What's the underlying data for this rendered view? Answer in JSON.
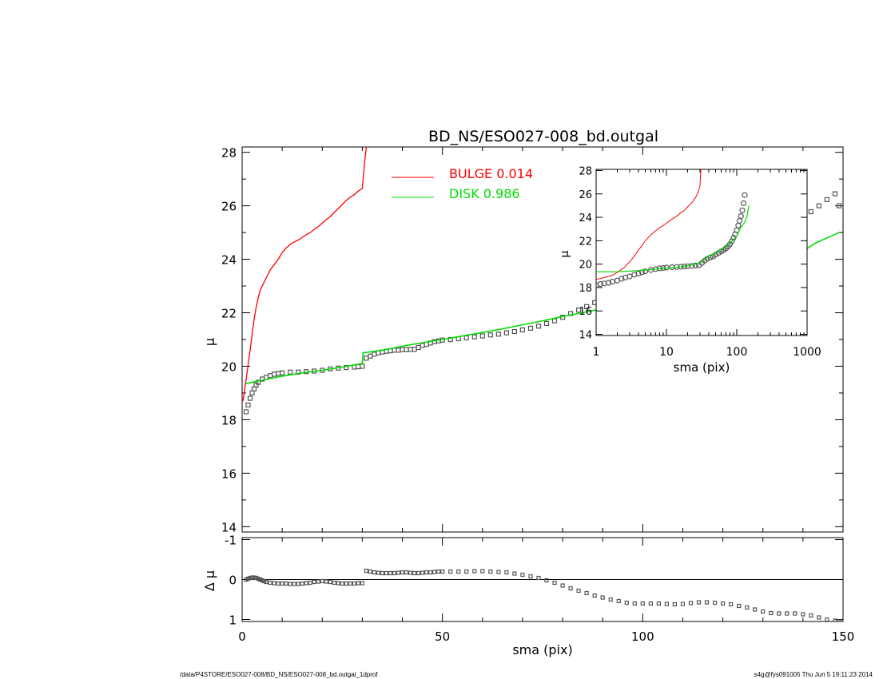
{
  "title": "BD_NS/ESO027-008_bd.outgal",
  "footer": {
    "left": "/data/P4STORE/ESO027-008/BD_NS/ESO027-008_bd.outgal_1dprof",
    "right": "s4g@fys091005  Thu Jun  5 19:11:23 2014"
  },
  "colors": {
    "bulge": "#ff0000",
    "disk": "#00dd00",
    "data": "#555555",
    "axis": "#000000"
  },
  "chart_data": [
    {
      "id": "main",
      "type": "line",
      "title": "BD_NS/ESO027-008_bd.outgal",
      "xlabel": "sma (pix)",
      "ylabel": "μ",
      "xlim": [
        0,
        150
      ],
      "ylim": [
        28.2,
        13.8
      ],
      "x_ticks": [
        0,
        50,
        100,
        150
      ],
      "y_ticks": [
        14,
        16,
        18,
        20,
        22,
        24,
        26,
        28
      ],
      "legend": [
        {
          "label": "BULGE  0.014",
          "series": "bulge"
        },
        {
          "label": "DISK  0.986",
          "series": "disk"
        }
      ],
      "series": [
        {
          "name": "data",
          "style": "markers",
          "x": [
            1,
            1.5,
            2,
            2.5,
            3,
            3.5,
            4,
            5,
            6,
            7,
            8,
            9,
            10,
            12,
            14,
            16,
            18,
            20,
            22,
            24,
            26,
            28,
            29,
            30,
            31,
            32,
            33,
            34,
            35,
            36,
            37,
            38,
            39,
            40,
            41,
            42,
            43,
            44,
            45,
            46,
            47,
            48,
            49,
            50,
            52,
            54,
            56,
            58,
            60,
            62,
            64,
            66,
            68,
            70,
            72,
            74,
            76,
            78,
            80,
            82,
            84,
            86,
            88,
            90,
            92,
            94,
            96,
            98,
            100,
            102,
            104,
            106,
            108,
            110,
            112,
            114,
            116,
            118,
            120,
            122,
            124,
            126,
            128,
            130,
            132,
            134,
            136,
            138,
            140,
            142,
            144,
            146,
            148,
            149
          ],
          "y": [
            18.3,
            18.55,
            18.8,
            19.0,
            19.15,
            19.3,
            19.4,
            19.52,
            19.58,
            19.65,
            19.7,
            19.73,
            19.75,
            19.78,
            19.78,
            19.8,
            19.82,
            19.85,
            19.9,
            19.93,
            19.95,
            19.97,
            19.98,
            20.0,
            20.3,
            20.38,
            20.45,
            20.5,
            20.53,
            20.56,
            20.58,
            20.6,
            20.6,
            20.62,
            20.62,
            20.63,
            20.63,
            20.7,
            20.78,
            20.82,
            20.87,
            20.92,
            20.95,
            20.98,
            21.0,
            21.03,
            21.06,
            21.1,
            21.13,
            21.17,
            21.2,
            21.25,
            21.3,
            21.36,
            21.42,
            21.5,
            21.6,
            21.7,
            21.83,
            21.97,
            22.1,
            22.23,
            22.38,
            22.52,
            22.68,
            22.82,
            22.97,
            23.1,
            23.68,
            23.48,
            23.55,
            23.6,
            23.63,
            23.65,
            23.65,
            23.7,
            23.78,
            23.87,
            23.95,
            24.05,
            24.18,
            24.3,
            24.43,
            24.56,
            24.68,
            24.82,
            25.08,
            25.33,
            25.53,
            25.78,
            26.0,
            26.23,
            26.45,
            26.0
          ]
        },
        {
          "name": "bulge",
          "style": "line",
          "x": [
            0.2,
            0.5,
            1,
            1.5,
            2,
            2.5,
            3,
            3.5,
            4,
            4.5,
            5,
            6,
            7,
            8,
            9,
            10,
            11,
            12,
            13,
            14,
            15,
            16,
            17,
            18,
            19,
            20,
            21,
            22,
            23,
            24,
            25,
            26,
            27,
            28,
            29,
            30,
            30.5,
            31
          ],
          "y": [
            18.7,
            19.0,
            19.5,
            20.05,
            20.6,
            21.2,
            21.75,
            22.2,
            22.55,
            22.85,
            23.0,
            23.3,
            23.6,
            23.8,
            24.0,
            24.25,
            24.42,
            24.55,
            24.65,
            24.72,
            24.82,
            24.92,
            25.0,
            25.12,
            25.22,
            25.35,
            25.48,
            25.6,
            25.75,
            25.9,
            26.05,
            26.2,
            26.32,
            26.42,
            26.55,
            26.65,
            27.5,
            28.2
          ]
        },
        {
          "name": "disk",
          "style": "line",
          "x": [
            1,
            5,
            10,
            15,
            20,
            25,
            28,
            30,
            30.2,
            35,
            40,
            45,
            50,
            55,
            60,
            65,
            70,
            75,
            80,
            85,
            90,
            95,
            99,
            100,
            101,
            102,
            105,
            110,
            115,
            120,
            125,
            130,
            135,
            137,
            140,
            143,
            146,
            149
          ],
          "y": [
            19.35,
            19.48,
            19.63,
            19.75,
            19.85,
            19.97,
            20.05,
            20.1,
            20.5,
            20.6,
            20.75,
            20.88,
            21.0,
            21.13,
            21.26,
            21.4,
            21.55,
            21.7,
            21.86,
            22.0,
            22.16,
            22.31,
            22.4,
            23.05,
            22.9,
            22.8,
            22.9,
            23.05,
            23.2,
            23.35,
            23.5,
            23.7,
            23.95,
            24.2,
            24.3,
            24.6,
            24.8,
            25.0
          ]
        }
      ]
    },
    {
      "id": "residual",
      "type": "scatter",
      "xlabel": "sma (pix)",
      "ylabel": "Δ μ",
      "xlim": [
        0,
        150
      ],
      "ylim": [
        -1.05,
        1.05
      ],
      "x_ticks": [
        0,
        50,
        100,
        150
      ],
      "y_ticks": [
        -1,
        0,
        1
      ],
      "series": [
        {
          "name": "residual",
          "x": [
            1,
            1.5,
            2,
            2.5,
            3,
            3.5,
            4,
            4.5,
            5,
            5.5,
            6,
            7,
            8,
            9,
            10,
            11,
            12,
            13,
            14,
            15,
            16,
            17,
            18,
            19,
            20,
            21,
            22,
            23,
            24,
            25,
            26,
            27,
            28,
            29,
            30,
            31,
            32,
            33,
            34,
            35,
            36,
            37,
            38,
            39,
            40,
            41,
            42,
            43,
            44,
            45,
            46,
            47,
            48,
            49,
            50,
            52,
            54,
            56,
            58,
            60,
            62,
            64,
            66,
            68,
            70,
            72,
            74,
            76,
            78,
            80,
            82,
            84,
            86,
            88,
            90,
            92,
            94,
            96,
            98,
            100,
            102,
            104,
            106,
            108,
            110,
            112,
            114,
            116,
            118,
            120,
            122,
            124,
            126,
            128,
            130,
            132,
            134,
            136,
            138,
            140,
            142,
            144,
            146,
            148,
            149
          ],
          "y": [
            0,
            -0.02,
            -0.04,
            -0.05,
            -0.05,
            -0.04,
            -0.02,
            0,
            0.02,
            0.04,
            0.06,
            0.08,
            0.09,
            0.1,
            0.1,
            0.1,
            0.11,
            0.11,
            0.11,
            0.1,
            0.09,
            0.08,
            0.06,
            0.05,
            0.04,
            0.05,
            0.06,
            0.08,
            0.09,
            0.1,
            0.1,
            0.1,
            0.1,
            0.09,
            0.09,
            -0.22,
            -0.2,
            -0.18,
            -0.17,
            -0.16,
            -0.16,
            -0.16,
            -0.16,
            -0.17,
            -0.18,
            -0.18,
            -0.17,
            -0.16,
            -0.16,
            -0.17,
            -0.18,
            -0.18,
            -0.19,
            -0.2,
            -0.2,
            -0.2,
            -0.2,
            -0.2,
            -0.21,
            -0.21,
            -0.2,
            -0.19,
            -0.18,
            -0.15,
            -0.12,
            -0.08,
            -0.04,
            0.02,
            0.08,
            0.15,
            0.22,
            0.28,
            0.34,
            0.4,
            0.45,
            0.5,
            0.54,
            0.58,
            0.6,
            0.6,
            0.6,
            0.6,
            0.61,
            0.62,
            0.61,
            0.59,
            0.57,
            0.57,
            0.58,
            0.6,
            0.62,
            0.66,
            0.7,
            0.75,
            0.8,
            0.84,
            0.85,
            0.85,
            0.85,
            0.87,
            0.9,
            0.95,
            1.0,
            1.03,
            1.05
          ]
        }
      ]
    },
    {
      "id": "inset",
      "type": "line",
      "xlabel": "sma (pix)",
      "ylabel": "μ",
      "xscale": "log",
      "xlim": [
        1,
        1000
      ],
      "ylim": [
        28.1,
        13.9
      ],
      "x_ticks": [
        1,
        10,
        100,
        1000
      ],
      "y_ticks": [
        14,
        16,
        18,
        20,
        22,
        24,
        26,
        28
      ],
      "series": [
        {
          "name": "data",
          "style": "markers",
          "x": [
            1,
            1.15,
            1.3,
            1.5,
            1.7,
            2,
            2.3,
            2.6,
            3,
            3.5,
            4,
            4.5,
            5,
            6,
            7,
            8,
            9,
            10,
            12,
            14,
            16,
            18,
            20,
            23,
            26,
            29,
            32,
            35,
            38,
            42,
            46,
            50,
            55,
            60,
            65,
            70,
            75,
            80,
            85,
            90,
            95,
            100,
            105,
            110,
            115,
            120,
            125,
            130
          ],
          "y": [
            18.2,
            18.3,
            18.35,
            18.4,
            18.5,
            18.6,
            18.75,
            18.85,
            18.95,
            19.1,
            19.2,
            19.3,
            19.38,
            19.5,
            19.58,
            19.64,
            19.67,
            19.7,
            19.74,
            19.76,
            19.78,
            19.8,
            19.82,
            19.85,
            19.88,
            19.9,
            20.1,
            20.3,
            20.45,
            20.58,
            20.65,
            20.8,
            20.95,
            21.08,
            21.2,
            21.35,
            21.5,
            21.7,
            21.95,
            22.25,
            22.55,
            22.9,
            23.3,
            23.7,
            24.1,
            24.6,
            25.2,
            25.9
          ]
        },
        {
          "name": "bulge",
          "style": "line",
          "x": [
            1,
            1.3,
            1.7,
            2,
            2.5,
            3,
            3.5,
            4,
            4.5,
            5,
            6,
            7,
            8,
            9,
            10,
            12,
            14,
            16,
            18,
            20,
            22,
            24,
            26,
            28,
            29,
            30,
            30.5,
            31
          ],
          "y": [
            18.7,
            18.85,
            19.05,
            19.3,
            19.7,
            20.2,
            20.7,
            21.2,
            21.6,
            22.0,
            22.5,
            22.85,
            23.1,
            23.3,
            23.5,
            23.85,
            24.1,
            24.4,
            24.6,
            24.9,
            25.1,
            25.4,
            25.7,
            26.1,
            26.4,
            26.7,
            27.5,
            28.1
          ]
        },
        {
          "name": "disk",
          "style": "line",
          "x": [
            1,
            2,
            3,
            4,
            5,
            7,
            10,
            15,
            20,
            30,
            40,
            50,
            60,
            70,
            80,
            90,
            100,
            110,
            120,
            130,
            140,
            149
          ],
          "y": [
            19.35,
            19.35,
            19.4,
            19.45,
            19.5,
            19.57,
            19.65,
            19.75,
            19.85,
            20.1,
            20.7,
            20.95,
            21.25,
            21.5,
            21.8,
            22.1,
            22.4,
            22.95,
            23.3,
            23.6,
            24.1,
            25.0
          ]
        }
      ]
    }
  ]
}
